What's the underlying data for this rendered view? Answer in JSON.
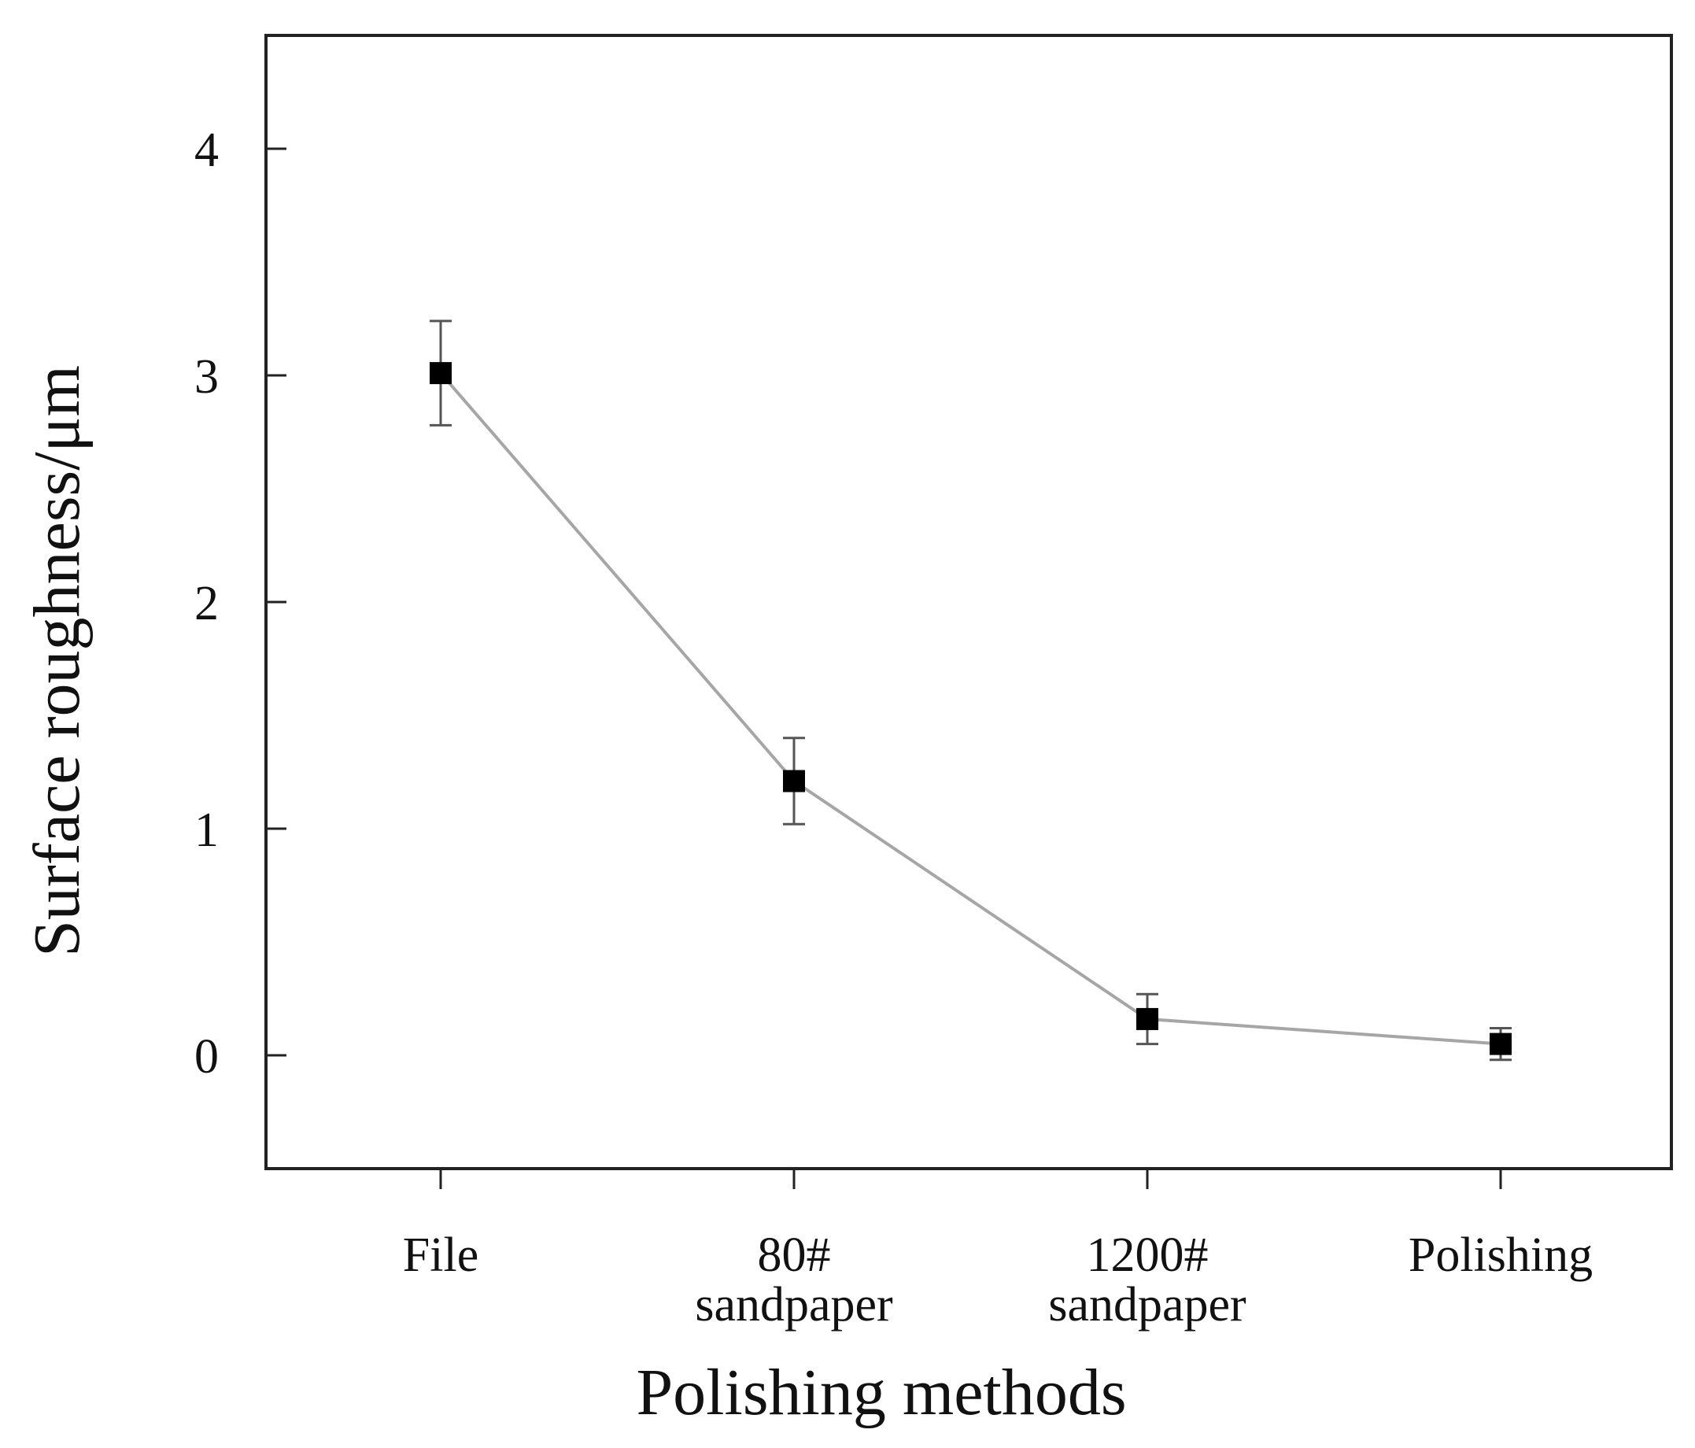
{
  "chart_data": {
    "type": "line",
    "title": "",
    "xlabel": "Polishing methods",
    "ylabel": "Surface roughness/μm",
    "categories": [
      [
        "File"
      ],
      [
        "80#",
        "sandpaper"
      ],
      [
        "1200#",
        "sandpaper"
      ],
      [
        "Polishing"
      ]
    ],
    "series": [
      {
        "values": [
          3.01,
          1.21,
          0.16,
          0.05
        ],
        "error": [
          0.23,
          0.19,
          0.11,
          0.07
        ]
      }
    ],
    "yticks": [
      0,
      1,
      2,
      3,
      4
    ],
    "ylim": [
      -0.5,
      4.5
    ],
    "grid": false,
    "colors": {
      "line": "#a6a6a6",
      "marker": "#000000",
      "errorbar": "#555555",
      "axis": "#222222"
    }
  }
}
